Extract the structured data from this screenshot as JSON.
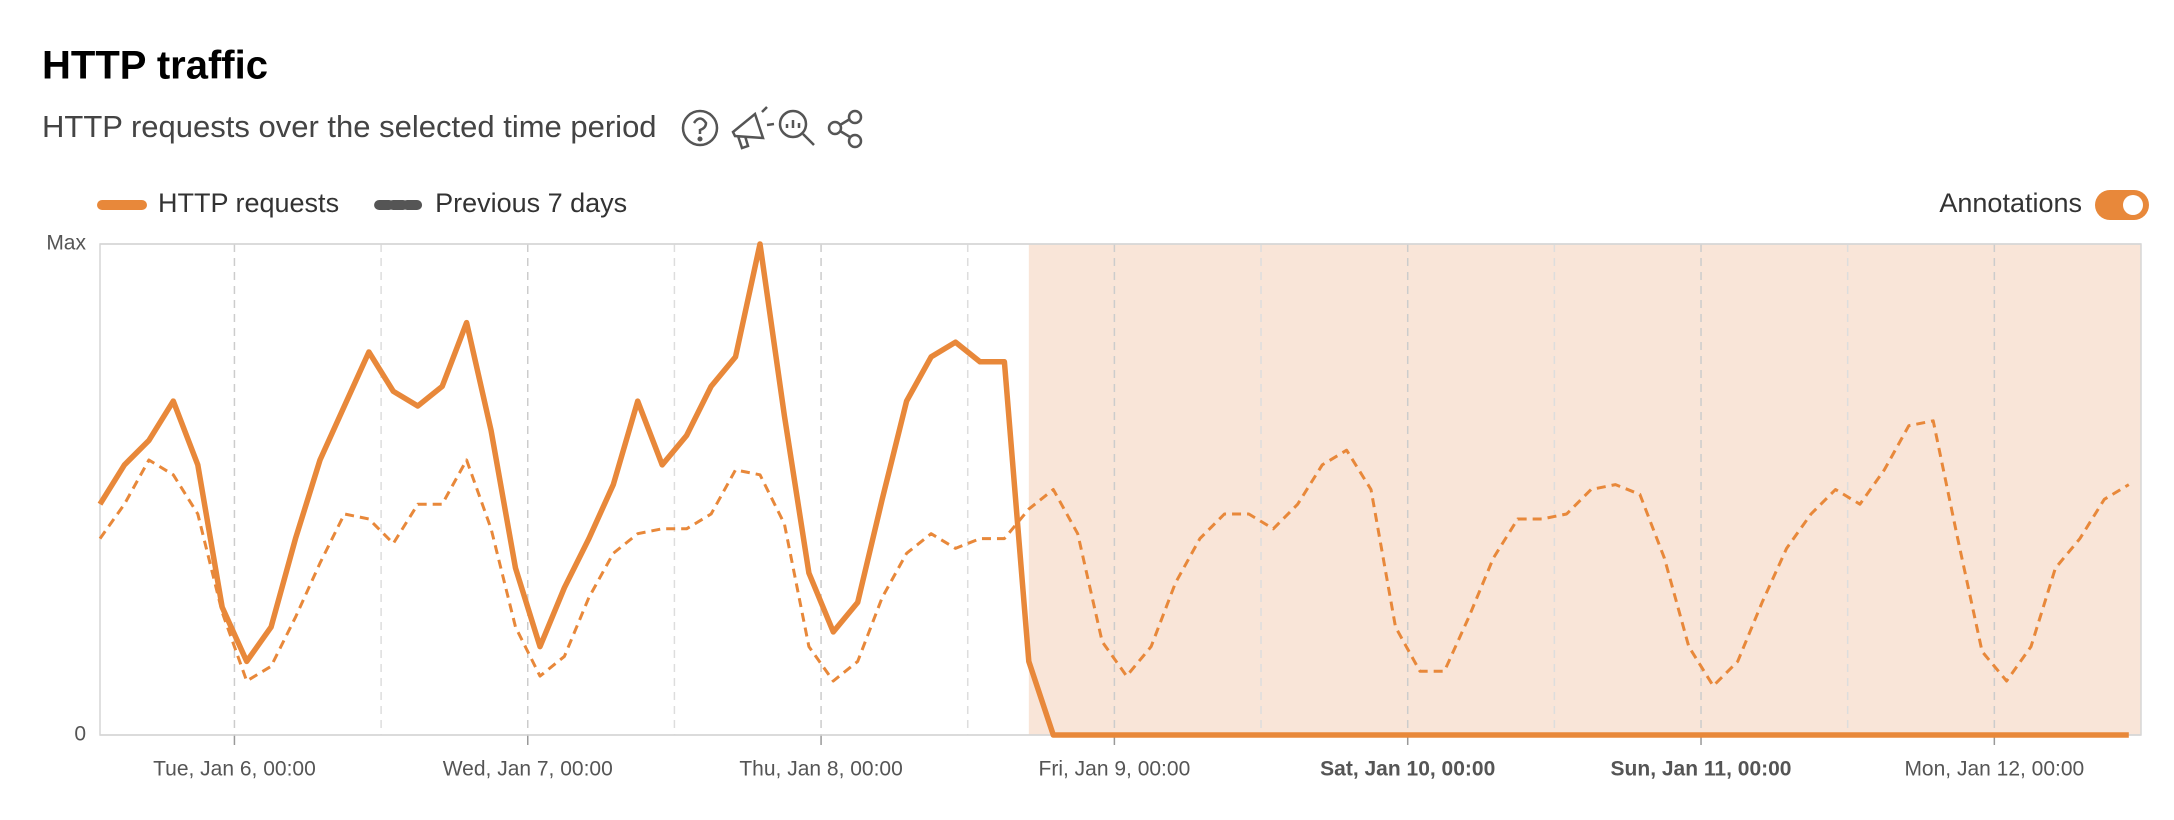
{
  "chart_data": {
    "type": "line",
    "title": "HTTP traffic",
    "subtitle": "HTTP requests over the selected time period",
    "annotations_toggle": "Annotations",
    "annotation_range": [
      "Jan 8, 17:00",
      "Jan 12, 12:00"
    ],
    "x": [
      "Jan 5, 13:00",
      "Jan 5, 15:00",
      "Jan 5, 17:00",
      "Jan 5, 19:00",
      "Jan 5, 21:00",
      "Jan 5, 23:00",
      "Jan 6, 01:00",
      "Jan 6, 03:00",
      "Jan 6, 05:00",
      "Jan 6, 07:00",
      "Jan 6, 09:00",
      "Jan 6, 11:00",
      "Jan 6, 13:00",
      "Jan 6, 15:00",
      "Jan 6, 17:00",
      "Jan 6, 19:00",
      "Jan 6, 21:00",
      "Jan 6, 23:00",
      "Jan 7, 01:00",
      "Jan 7, 03:00",
      "Jan 7, 05:00",
      "Jan 7, 07:00",
      "Jan 7, 09:00",
      "Jan 7, 11:00",
      "Jan 7, 13:00",
      "Jan 7, 15:00",
      "Jan 7, 17:00",
      "Jan 7, 19:00",
      "Jan 7, 21:00",
      "Jan 7, 23:00",
      "Jan 8, 01:00",
      "Jan 8, 03:00",
      "Jan 8, 05:00",
      "Jan 8, 07:00",
      "Jan 8, 09:00",
      "Jan 8, 11:00",
      "Jan 8, 13:00",
      "Jan 8, 15:00",
      "Jan 8, 17:00",
      "Jan 8, 19:00",
      "Jan 8, 21:00",
      "Jan 8, 23:00",
      "Jan 9, 01:00",
      "Jan 9, 03:00",
      "Jan 9, 05:00",
      "Jan 9, 07:00",
      "Jan 9, 09:00",
      "Jan 9, 11:00",
      "Jan 9, 13:00",
      "Jan 9, 15:00",
      "Jan 9, 17:00",
      "Jan 9, 19:00",
      "Jan 9, 21:00",
      "Jan 9, 23:00",
      "Jan 10, 01:00",
      "Jan 10, 03:00",
      "Jan 10, 05:00",
      "Jan 10, 07:00",
      "Jan 10, 09:00",
      "Jan 10, 11:00",
      "Jan 10, 13:00",
      "Jan 10, 15:00",
      "Jan 10, 17:00",
      "Jan 10, 19:00",
      "Jan 10, 21:00",
      "Jan 10, 23:00",
      "Jan 11, 01:00",
      "Jan 11, 03:00",
      "Jan 11, 05:00",
      "Jan 11, 07:00",
      "Jan 11, 09:00",
      "Jan 11, 11:00",
      "Jan 11, 13:00",
      "Jan 11, 15:00",
      "Jan 11, 17:00",
      "Jan 11, 19:00",
      "Jan 11, 21:00",
      "Jan 11, 23:00",
      "Jan 12, 01:00",
      "Jan 12, 03:00",
      "Jan 12, 05:00",
      "Jan 12, 07:00",
      "Jan 12, 09:00",
      "Jan 12, 11:00"
    ],
    "series": [
      {
        "name": "HTTP requests",
        "color": "#e8883a",
        "dashed": false,
        "values": [
          47,
          55,
          60,
          68,
          55,
          26,
          15,
          22,
          40,
          56,
          67,
          78,
          70,
          67,
          71,
          84,
          62,
          34,
          18,
          30,
          40,
          51,
          68,
          55,
          61,
          71,
          77,
          100,
          65,
          33,
          21,
          27,
          48,
          68,
          77,
          80,
          76,
          76,
          15,
          0,
          0,
          0,
          0,
          0,
          0,
          0,
          0,
          0,
          0,
          0,
          0,
          0,
          0,
          0,
          0,
          0,
          0,
          0,
          0,
          0,
          0,
          0,
          0,
          0,
          0,
          0,
          0,
          0,
          0,
          0,
          0,
          0,
          0,
          0,
          0,
          0,
          0,
          0,
          0,
          0,
          0,
          0,
          0,
          0
        ]
      },
      {
        "name": "Previous 7 days",
        "color": "#e8883a",
        "dashed": true,
        "values": [
          40,
          47,
          56,
          53,
          45,
          25,
          11,
          14,
          24,
          35,
          45,
          44,
          39,
          47,
          47,
          56,
          42,
          22,
          12,
          16,
          28,
          37,
          41,
          42,
          42,
          45,
          54,
          53,
          43,
          18,
          11,
          15,
          28,
          37,
          41,
          38,
          40,
          40,
          46,
          50,
          41,
          19,
          12,
          18,
          31,
          40,
          45,
          45,
          42,
          47,
          55,
          58,
          50,
          22,
          13,
          13,
          24,
          36,
          44,
          44,
          45,
          50,
          51,
          49,
          36,
          18,
          10,
          15,
          27,
          38,
          45,
          50,
          47,
          54,
          63,
          64,
          40,
          17,
          11,
          18,
          34,
          40,
          48,
          51
        ]
      }
    ],
    "xlim": [
      "Jan 5, 13:00",
      "Jan 12, 12:00"
    ],
    "xticks": [
      {
        "value": "Jan 6, 00:00",
        "label": "Tue, Jan 6, 00:00"
      },
      {
        "value": "Jan 7, 00:00",
        "label": "Wed, Jan 7, 00:00"
      },
      {
        "value": "Jan 8, 00:00",
        "label": "Thu, Jan 8, 00:00"
      },
      {
        "value": "Jan 9, 00:00",
        "label": "Fri, Jan 9, 00:00"
      },
      {
        "value": "Jan 10, 00:00",
        "label": "Sat, Jan 10, 00:00"
      },
      {
        "value": "Jan 11, 00:00",
        "label": "Sun, Jan 11, 00:00"
      },
      {
        "value": "Jan 12, 00:00",
        "label": "Mon, Jan 12, 00:00"
      }
    ],
    "xticks_bold": [
      false,
      false,
      false,
      false,
      true,
      true,
      false
    ],
    "x_minor_ticks": [
      "Jan 6, 12:00",
      "Jan 7, 12:00",
      "Jan 8, 12:00",
      "Jan 9, 12:00",
      "Jan 10, 12:00",
      "Jan 11, 12:00"
    ],
    "ylim": [
      0,
      100
    ],
    "yticks": [
      0,
      {
        "value": 100,
        "label": "Max"
      }
    ],
    "grid": true
  }
}
